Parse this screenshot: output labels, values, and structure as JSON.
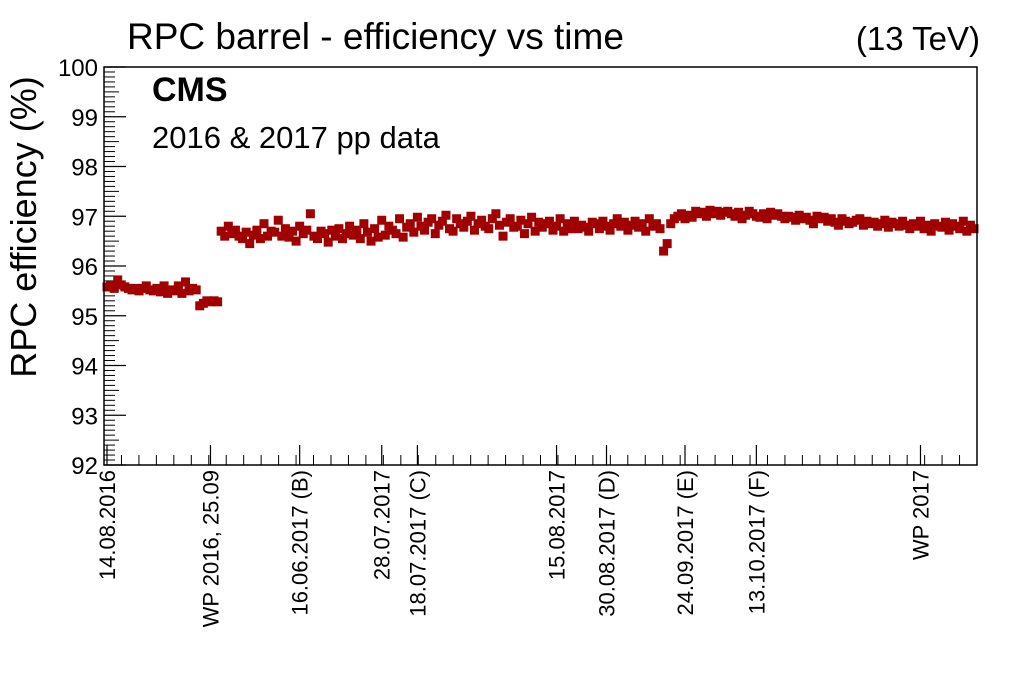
{
  "chart_data": {
    "type": "scatter",
    "title": "RPC barrel - efficiency vs time",
    "energy_label": "(13 TeV)",
    "ylabel": "RPC efficiency (%)",
    "xlabel": "",
    "ylim": [
      92,
      100
    ],
    "yticks": [
      "92",
      "93",
      "94",
      "95",
      "96",
      "97",
      "98",
      "99",
      "100"
    ],
    "annotations": {
      "experiment": "CMS",
      "dataset": "2016 & 2017 pp data"
    },
    "grid": false,
    "legend": "none",
    "marker_color": "#a00000",
    "x_labels": [
      {
        "label": "14.08.2016",
        "point_index": 0
      },
      {
        "label": "WP 2016, 25.09",
        "point_index": 29
      },
      {
        "label": "16.06.2017 (B)",
        "point_index": 54
      },
      {
        "label": "28.07.2017",
        "point_index": 77
      },
      {
        "label": "18.07.2017 (C)",
        "point_index": 87
      },
      {
        "label": "15.08.2017",
        "point_index": 126
      },
      {
        "label": "30.08.2017 (D)",
        "point_index": 140
      },
      {
        "label": "24.09.2017 (E)",
        "point_index": 162
      },
      {
        "label": "13.10.2017 (F)",
        "point_index": 182
      },
      {
        "label": "WP 2017",
        "point_index": 228
      }
    ],
    "series": [
      {
        "values": [
          95.58,
          95.6,
          95.55,
          95.72,
          95.62,
          95.58,
          95.55,
          95.52,
          95.55,
          95.5,
          95.55,
          95.6,
          95.52,
          95.5,
          95.55,
          95.48,
          95.6,
          95.45,
          95.52,
          95.5,
          95.6,
          95.45,
          95.68,
          95.5,
          95.55,
          95.52,
          95.2,
          95.25,
          95.3,
          95.28,
          95.3,
          95.28,
          96.7,
          96.6,
          96.8,
          96.65,
          96.72,
          96.6,
          96.55,
          96.68,
          96.45,
          96.62,
          96.72,
          96.55,
          96.85,
          96.6,
          96.7,
          96.68,
          96.92,
          96.6,
          96.75,
          96.58,
          96.7,
          96.5,
          96.8,
          96.65,
          96.72,
          97.05,
          96.6,
          96.55,
          96.7,
          96.65,
          96.48,
          96.72,
          96.6,
          96.75,
          96.55,
          96.65,
          96.8,
          96.62,
          96.72,
          96.55,
          96.85,
          96.68,
          96.5,
          96.75,
          96.58,
          96.92,
          96.62,
          96.8,
          96.72,
          96.65,
          96.95,
          96.58,
          96.78,
          96.85,
          96.68,
          96.98,
          96.8,
          96.72,
          96.88,
          96.95,
          96.65,
          96.82,
          96.9,
          97.02,
          96.75,
          96.7,
          96.95,
          96.85,
          96.78,
          96.9,
          97.0,
          96.72,
          96.85,
          96.92,
          96.8,
          96.75,
          96.95,
          97.05,
          96.82,
          96.6,
          96.88,
          96.95,
          96.78,
          96.8,
          96.92,
          96.65,
          96.85,
          96.98,
          96.7,
          96.88,
          96.78,
          96.85,
          96.9,
          96.72,
          96.8,
          96.95,
          96.7,
          96.85,
          96.75,
          96.9,
          96.75,
          96.82,
          96.78,
          96.7,
          96.88,
          96.85,
          96.75,
          96.9,
          96.8,
          96.72,
          96.85,
          96.95,
          96.8,
          96.88,
          96.72,
          96.82,
          96.9,
          96.78,
          96.85,
          96.7,
          96.95,
          96.8,
          96.85,
          96.75,
          96.3,
          96.45,
          96.85,
          96.95,
          97.0,
          97.05,
          96.95,
          97.02,
          96.98,
          97.1,
          97.05,
          97.08,
          97.0,
          97.12,
          97.05,
          97.1,
          97.02,
          97.08,
          97.1,
          97.05,
          97.0,
          97.08,
          96.95,
          97.02,
          97.1,
          97.05,
          97.0,
          96.98,
          97.05,
          96.95,
          97.08,
          97.02,
          97.05,
          97.0,
          96.95,
          97.0,
          96.98,
          96.92,
          97.02,
          96.95,
          96.98,
          96.92,
          96.85,
          97.0,
          96.95,
          96.98,
          96.9,
          96.95,
          96.88,
          96.82,
          96.95,
          96.9,
          96.85,
          96.88,
          96.92,
          96.95,
          96.82,
          96.9,
          96.85,
          96.88,
          96.8,
          96.85,
          96.92,
          96.78,
          96.88,
          96.85,
          96.8,
          96.9,
          96.82,
          96.75,
          96.85,
          96.8,
          96.9,
          96.75,
          96.82,
          96.7,
          96.85,
          96.8,
          96.78,
          96.88,
          96.72,
          96.85,
          96.8,
          96.75,
          96.9,
          96.7,
          96.82,
          96.75
        ]
      }
    ]
  }
}
